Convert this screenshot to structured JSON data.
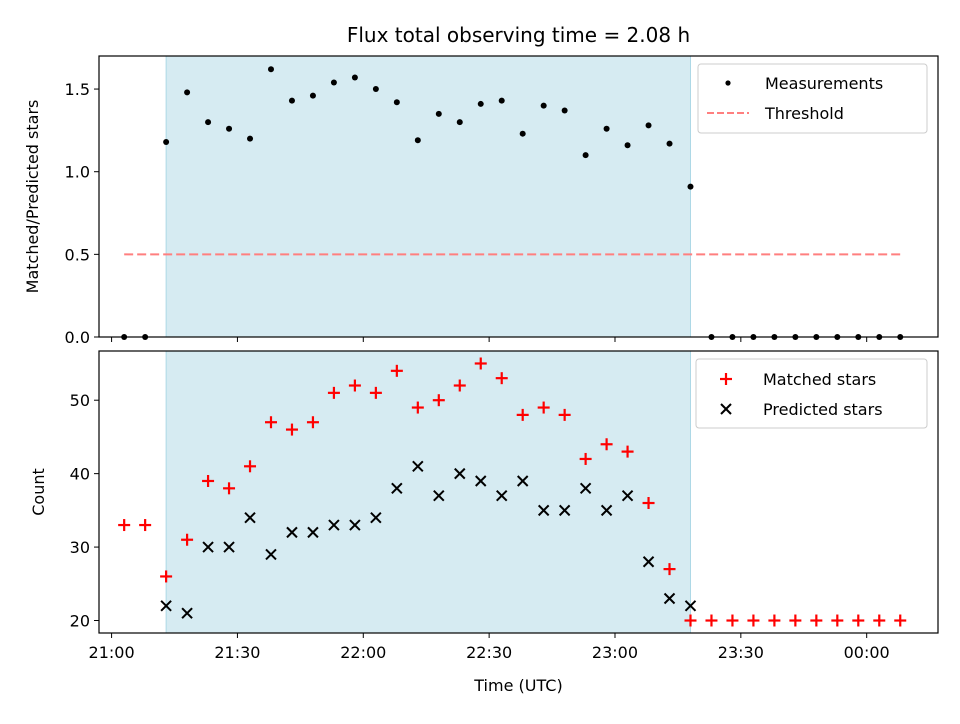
{
  "chart_data": [
    {
      "type": "scatter",
      "title": "Flux total observing time = 2.08 h",
      "ylabel": "Matched/Predicted stars",
      "xlabel": "",
      "ylim": [
        0,
        1.7
      ],
      "xlim": [
        "20:57",
        "00:17"
      ],
      "yticks": [
        0.0,
        0.5,
        1.0,
        1.5
      ],
      "ytick_labels": [
        "0.0",
        "0.5",
        "1.0",
        "1.5"
      ],
      "shaded_region": [
        "21:13",
        "23:18"
      ],
      "legend_position": "top-right",
      "grid": false,
      "series": [
        {
          "name": "Measurements",
          "style": "points",
          "color": "#000000",
          "x": [
            "21:03",
            "21:08",
            "21:13",
            "21:18",
            "21:23",
            "21:28",
            "21:33",
            "21:38",
            "21:43",
            "21:48",
            "21:53",
            "21:58",
            "22:03",
            "22:08",
            "22:13",
            "22:18",
            "22:23",
            "22:28",
            "22:33",
            "22:38",
            "22:43",
            "22:48",
            "22:53",
            "22:58",
            "23:03",
            "23:08",
            "23:13",
            "23:18",
            "23:23",
            "23:28",
            "23:33",
            "23:38",
            "23:43",
            "23:48",
            "23:53",
            "23:58",
            "00:03",
            "00:08"
          ],
          "y": [
            0.0,
            0.0,
            1.18,
            1.48,
            1.3,
            1.26,
            1.2,
            1.62,
            1.43,
            1.46,
            1.54,
            1.57,
            1.5,
            1.42,
            1.19,
            1.35,
            1.3,
            1.41,
            1.43,
            1.23,
            1.4,
            1.37,
            1.1,
            1.26,
            1.16,
            1.28,
            1.17,
            0.91,
            0.0,
            0.0,
            0.0,
            0.0,
            0.0,
            0.0,
            0.0,
            0.0,
            0.0,
            0.0
          ]
        },
        {
          "name": "Threshold",
          "style": "dashed-line",
          "color": "#ff7f7f",
          "x": [
            "21:03",
            "00:08"
          ],
          "y": [
            0.5,
            0.5
          ]
        }
      ]
    },
    {
      "type": "scatter",
      "title": "",
      "ylabel": "Count",
      "xlabel": "Time (UTC)",
      "ylim": [
        18.3,
        56.7
      ],
      "xlim": [
        "20:57",
        "00:17"
      ],
      "yticks": [
        20,
        30,
        40,
        50
      ],
      "ytick_labels": [
        "20",
        "30",
        "40",
        "50"
      ],
      "xticks": [
        "21:00",
        "21:30",
        "22:00",
        "22:30",
        "23:00",
        "23:30",
        "00:00"
      ],
      "xtick_labels": [
        "21:00",
        "21:30",
        "22:00",
        "22:30",
        "23:00",
        "23:30",
        "00:00"
      ],
      "shaded_region": [
        "21:13",
        "23:18"
      ],
      "legend_position": "top-right",
      "grid": false,
      "series": [
        {
          "name": "Matched stars",
          "marker": "plus",
          "color": "#ff0000",
          "x": [
            "21:03",
            "21:08",
            "21:13",
            "21:18",
            "21:23",
            "21:28",
            "21:33",
            "21:38",
            "21:43",
            "21:48",
            "21:53",
            "21:58",
            "22:03",
            "22:08",
            "22:13",
            "22:18",
            "22:23",
            "22:28",
            "22:33",
            "22:38",
            "22:43",
            "22:48",
            "22:53",
            "22:58",
            "23:03",
            "23:08",
            "23:13",
            "23:18",
            "23:23",
            "23:28",
            "23:33",
            "23:38",
            "23:43",
            "23:48",
            "23:53",
            "23:58",
            "00:03",
            "00:08"
          ],
          "y": [
            33,
            33,
            26,
            31,
            39,
            38,
            41,
            47,
            46,
            47,
            51,
            52,
            51,
            54,
            49,
            50,
            52,
            55,
            53,
            48,
            49,
            48,
            42,
            44,
            43,
            36,
            27,
            20,
            20,
            20,
            20,
            20,
            20,
            20,
            20,
            20,
            20,
            20
          ]
        },
        {
          "name": "Predicted stars",
          "marker": "x",
          "color": "#000000",
          "x": [
            "21:13",
            "21:18",
            "21:23",
            "21:28",
            "21:33",
            "21:38",
            "21:43",
            "21:48",
            "21:53",
            "21:58",
            "22:03",
            "22:08",
            "22:13",
            "22:18",
            "22:23",
            "22:28",
            "22:33",
            "22:38",
            "22:43",
            "22:48",
            "22:53",
            "22:58",
            "23:03",
            "23:08",
            "23:13",
            "23:18"
          ],
          "y": [
            22,
            21,
            30,
            30,
            34,
            29,
            32,
            32,
            33,
            33,
            34,
            38,
            41,
            37,
            40,
            39,
            37,
            39,
            35,
            35,
            38,
            35,
            37,
            28,
            23,
            22
          ]
        }
      ]
    }
  ],
  "colors": {
    "shade": "#add8e6",
    "threshold": "#ff7f7f",
    "matched": "#ff0000",
    "predicted": "#000000",
    "measurements": "#000000"
  }
}
